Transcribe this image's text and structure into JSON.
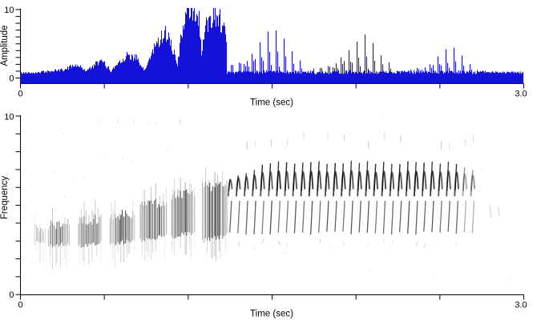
{
  "figure": {
    "background": "#ffffff",
    "axis_color": "#000000",
    "waveform_color": "#1411d8",
    "spectrogram_ink": "#111111"
  },
  "chart_data": [
    {
      "type": "area",
      "subtype": "amplitude-waveform",
      "ylabel": "Amplitude",
      "xlabel": "Time (sec)",
      "xlim": [
        0,
        3.0
      ],
      "ylim": [
        0,
        10
      ],
      "xtick_labels": {
        "min": "0",
        "max": "3.0"
      },
      "ytick_labels": {
        "min": "0",
        "max": "10"
      },
      "num_xticks": 7,
      "num_yticks": 11,
      "noise_floor_amp": 0.8,
      "envelope_points": [
        [
          0.0,
          0.75
        ],
        [
          0.08,
          0.8
        ],
        [
          0.14,
          0.9
        ],
        [
          0.2,
          1.05
        ],
        [
          0.26,
          1.2
        ],
        [
          0.3,
          1.7
        ],
        [
          0.33,
          1.95
        ],
        [
          0.36,
          1.6
        ],
        [
          0.39,
          1.1
        ],
        [
          0.43,
          1.6
        ],
        [
          0.46,
          2.25
        ],
        [
          0.49,
          2.4
        ],
        [
          0.52,
          1.6
        ],
        [
          0.54,
          1.0
        ],
        [
          0.57,
          1.9
        ],
        [
          0.61,
          2.9
        ],
        [
          0.65,
          3.4
        ],
        [
          0.69,
          3.0
        ],
        [
          0.72,
          1.6
        ],
        [
          0.74,
          1.1
        ],
        [
          0.77,
          2.8
        ],
        [
          0.8,
          4.5
        ],
        [
          0.83,
          5.8
        ],
        [
          0.86,
          6.7
        ],
        [
          0.89,
          6.0
        ],
        [
          0.92,
          3.2
        ],
        [
          0.935,
          1.6
        ],
        [
          0.955,
          5.5
        ],
        [
          0.98,
          9.0
        ],
        [
          1.01,
          9.7
        ],
        [
          1.04,
          9.9
        ],
        [
          1.065,
          8.8
        ],
        [
          1.08,
          3.2
        ],
        [
          1.1,
          7.0
        ],
        [
          1.13,
          9.3
        ],
        [
          1.16,
          9.5
        ],
        [
          1.19,
          8.9
        ],
        [
          1.215,
          7.0
        ],
        [
          1.23,
          4.0
        ],
        [
          2.72,
          1.0
        ],
        [
          2.78,
          0.9
        ],
        [
          2.86,
          0.85
        ],
        [
          3.0,
          0.78
        ]
      ],
      "trill": {
        "t_start": 1.23,
        "t_end": 2.72,
        "period_sec": 0.0482,
        "peak_amp_start": 8.6,
        "peak_amp_mid": 5.0,
        "t_mid": 2.55,
        "peak_amp_end": 3.2,
        "inter_note_floor": 0.9
      }
    },
    {
      "type": "heatmap",
      "subtype": "spectrogram",
      "ylabel": "Frequency",
      "xlabel": "Time (sec)",
      "xlim": [
        0,
        3.0
      ],
      "ylim": [
        0,
        10
      ],
      "xtick_labels": {
        "min": "0",
        "max": "3.0"
      },
      "ytick_labels": {
        "min": "0",
        "max": "10"
      },
      "num_xticks": 7,
      "num_yticks": 11,
      "intro_syllables": [
        {
          "t_start": 0.085,
          "t_end": 0.155,
          "f_low": 2.9,
          "f_high": 3.7,
          "rise": 0.1,
          "darkness": 0.45
        },
        {
          "t_start": 0.165,
          "t_end": 0.3,
          "f_low": 2.7,
          "f_high": 3.9,
          "rise": 0.15,
          "darkness": 0.8
        },
        {
          "t_start": 0.345,
          "t_end": 0.49,
          "f_low": 2.7,
          "f_high": 4.1,
          "rise": 0.2,
          "darkness": 0.85
        },
        {
          "t_start": 0.535,
          "t_end": 0.685,
          "f_low": 2.8,
          "f_high": 4.4,
          "rise": 0.25,
          "darkness": 0.9
        },
        {
          "t_start": 0.715,
          "t_end": 0.87,
          "f_low": 3.0,
          "f_high": 5.0,
          "rise": 0.3,
          "darkness": 0.95
        },
        {
          "t_start": 0.9,
          "t_end": 1.04,
          "f_low": 3.2,
          "f_high": 5.5,
          "rise": 0.3,
          "darkness": 1.0
        },
        {
          "t_start": 1.085,
          "t_end": 1.235,
          "f_low": 3.0,
          "f_high": 6.0,
          "rise": 0.3,
          "darkness": 1.0
        }
      ],
      "trill_notes": {
        "t_start": 1.252,
        "period_sec": 0.0482,
        "count": 31,
        "arc_f_base": 5.6,
        "arc_f_peak_start": 6.7,
        "arc_f_peak": 7.7,
        "tail_f_top": 5.25,
        "tail_f_bottom": 3.45
      },
      "post_trill_marks": [
        {
          "t": 2.805,
          "f_low": 4.3,
          "f_high": 5.0
        },
        {
          "t": 2.855,
          "f_low": 4.4,
          "f_high": 4.9
        }
      ]
    }
  ]
}
